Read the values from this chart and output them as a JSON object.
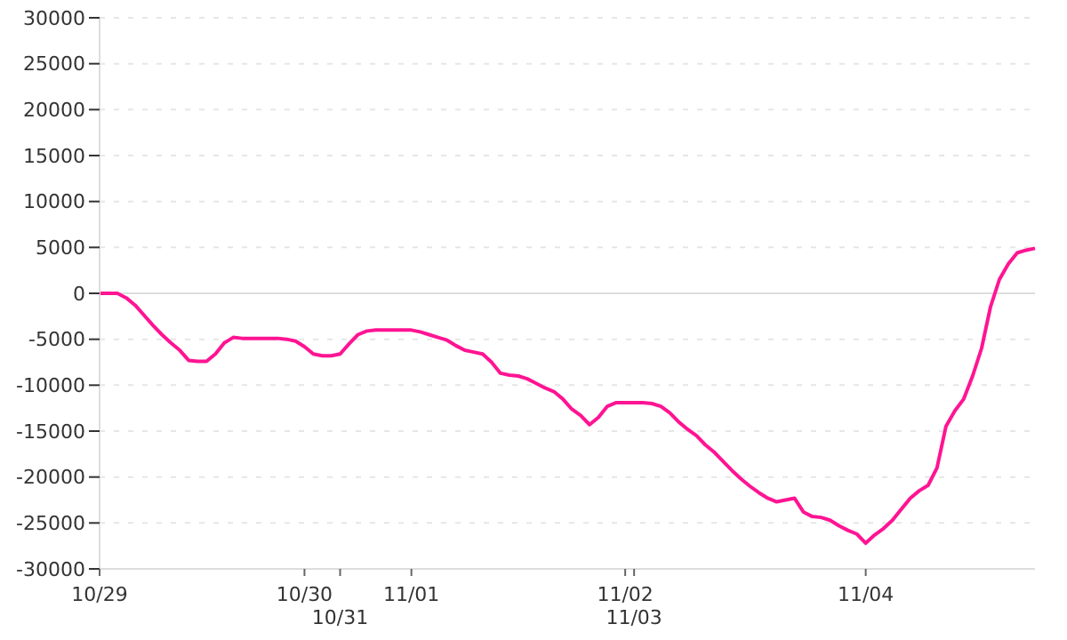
{
  "chart_data": {
    "type": "line",
    "categories": [
      "10/29",
      null,
      null,
      null,
      null,
      null,
      null,
      null,
      null,
      null,
      null,
      null,
      null,
      null,
      null,
      null,
      null,
      null,
      null,
      null,
      null,
      null,
      null,
      "10/30",
      null,
      null,
      null,
      "10/31",
      null,
      null,
      null,
      null,
      null,
      null,
      null,
      "11/01",
      null,
      null,
      null,
      null,
      null,
      null,
      null,
      null,
      null,
      null,
      null,
      null,
      null,
      null,
      null,
      null,
      null,
      null,
      null,
      null,
      null,
      null,
      null,
      "11/02",
      "11/03",
      null,
      null,
      null,
      null,
      null,
      null,
      null,
      null,
      null,
      null,
      null,
      null,
      null,
      null,
      null,
      null,
      null,
      null,
      null,
      null,
      null,
      null,
      null,
      null,
      null,
      "11/04",
      null,
      null,
      null,
      null,
      null,
      null,
      null,
      null,
      null,
      null,
      null,
      null,
      null,
      null,
      null,
      null,
      null,
      null,
      null
    ],
    "series": [
      {
        "color": "#ff1493",
        "values": [
          0,
          0,
          0,
          -500,
          -1300,
          -2400,
          -3500,
          -4500,
          -5400,
          -6200,
          -7300,
          -7400,
          -7400,
          -6600,
          -5400,
          -4800,
          -4900,
          -4900,
          -4900,
          -4900,
          -4900,
          -5000,
          -5200,
          -5800,
          -6600,
          -6800,
          -6800,
          -6600,
          -5500,
          -4500,
          -4100,
          -4000,
          -4000,
          -4000,
          -4000,
          -4000,
          -4200,
          -4500,
          -4800,
          -5100,
          -5700,
          -6200,
          -6400,
          -6600,
          -7500,
          -8700,
          -8900,
          -9000,
          -9300,
          -9800,
          -10300,
          -10700,
          -11500,
          -12600,
          -13300,
          -14300,
          -13500,
          -12300,
          -11900,
          -11900,
          -11900,
          -11900,
          -12000,
          -12300,
          -13000,
          -14000,
          -14800,
          -15500,
          -16500,
          -17300,
          -18300,
          -19300,
          -20200,
          -21000,
          -21700,
          -22300,
          -22700,
          -22500,
          -22300,
          -23800,
          -24300,
          -24400,
          -24700,
          -25300,
          -25800,
          -26200,
          -27200,
          -26300,
          -25600,
          -24700,
          -23500,
          -22300,
          -21500,
          -20900,
          -19000,
          -14500,
          -12800,
          -11500,
          -9000,
          -6000,
          -1500,
          1500,
          3200,
          4400,
          4700,
          4900
        ]
      }
    ],
    "ylim": [
      -30000,
      30000
    ],
    "yticks": [
      -30000,
      -25000,
      -20000,
      -15000,
      -10000,
      -5000,
      0,
      5000,
      10000,
      15000,
      20000,
      25000,
      30000
    ],
    "grid": "y",
    "legend": false,
    "marker": "none",
    "line_style": "solid",
    "ref_lines": [
      {
        "axis": "y",
        "value": 0,
        "color": "#dddddd"
      }
    ]
  }
}
